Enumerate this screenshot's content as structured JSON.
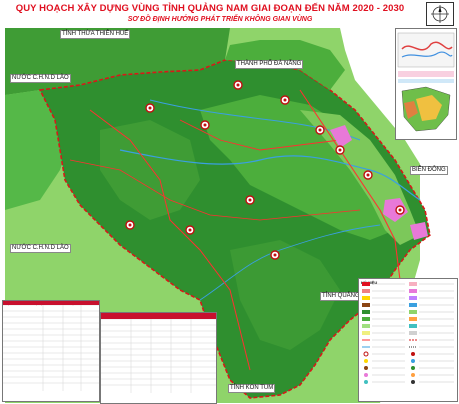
{
  "title": "QUY HOẠCH XÂY DỰNG VÙNG TỈNH QUẢNG NAM GIAI ĐOẠN ĐẾN NĂM 2020 - 2030",
  "subtitle": "SƠ ĐỒ ĐỊNH HƯỚNG PHÁT TRIỂN KHÔNG GIAN VÙNG",
  "place_labels": {
    "hue": "TỈNH THỪA THIÊN HUẾ",
    "danang": "THÀNH PHỐ ĐÀ NẴNG",
    "laos_north": "NƯỚC C.H.N.D LÀO",
    "laos_south": "NƯỚC C.H.N.D LÀO",
    "bien_dong": "BIỂN ĐÔNG",
    "quang_ngai": "TỈNH QUẢNG NGÃI",
    "kon_tum": "TỈNH KON TUM"
  },
  "panels": {
    "industrial_title": "HỆ THỐNG CÁC CỤM, KHU CÔNG NGHIỆP",
    "urban_title": "HỆ THỐNG CÁC ĐÔ THỊ TRÊN ĐỊA BÀN TỈNH QUẢNG NAM",
    "legend_title": "KÝ HIỆU"
  },
  "colors": {
    "land_dark": "#2f8f2f",
    "land_mid": "#4cae3c",
    "land_light": "#8fd46a",
    "border": "#d81818",
    "road": "#ff3030",
    "water": "#3aa0e0",
    "sea": "#ffffff",
    "urban": "#e879d8"
  }
}
